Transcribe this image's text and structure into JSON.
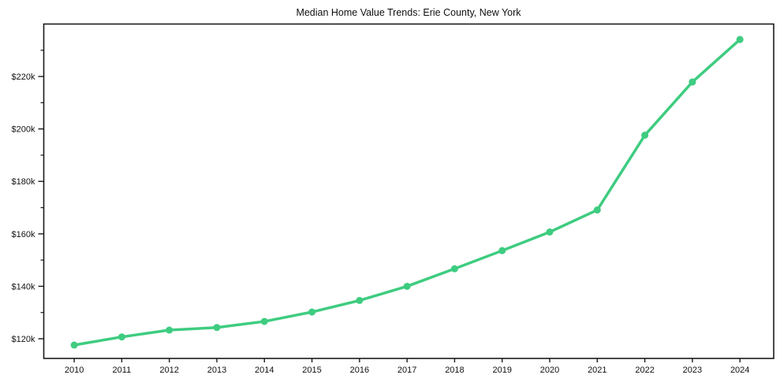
{
  "chart_data": {
    "type": "line",
    "title": "Median Home Value Trends: Erie County, New York",
    "x": [
      2010,
      2011,
      2012,
      2013,
      2014,
      2015,
      2016,
      2017,
      2018,
      2019,
      2020,
      2021,
      2022,
      2023,
      2024
    ],
    "x_labels": [
      "2010",
      "2011",
      "2012",
      "2013",
      "2014",
      "2015",
      "2016",
      "2017",
      "2018",
      "2019",
      "2020",
      "2021",
      "2022",
      "2023",
      "2024"
    ],
    "values": [
      117600,
      120700,
      123300,
      124300,
      126600,
      130200,
      134600,
      140000,
      146700,
      153600,
      160700,
      169100,
      197600,
      217900,
      234100
    ],
    "series_name": "Median Home Value",
    "y_ticks": [
      {
        "value": 120000,
        "label": "$120k"
      },
      {
        "value": 140000,
        "label": "$140k"
      },
      {
        "value": 160000,
        "label": "$160k"
      },
      {
        "value": 180000,
        "label": "$180k"
      },
      {
        "value": 200000,
        "label": "$200k"
      },
      {
        "value": 220000,
        "label": "$220k"
      }
    ],
    "y_minor_ticks": [
      130000,
      150000,
      170000,
      190000,
      210000,
      230000
    ],
    "ylim": [
      112500,
      240000
    ],
    "xlim": [
      2009.36,
      2024.71
    ],
    "xlabel": "",
    "ylabel": "",
    "grid": false,
    "legend_position": "none",
    "marker": "circle",
    "line_color": "#3ecc80",
    "frame_color": "#1a1a1a",
    "text_color": "#111111",
    "background": "#ffffff"
  }
}
